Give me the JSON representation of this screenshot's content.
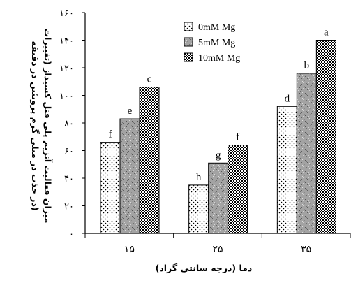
{
  "chart_data": {
    "type": "bar",
    "xlabel": "دما (درجه سانتی گراد)",
    "ylabel": [
      "میزان فعالیت آنزیم پلی فنل کسیداز (تغییرات",
      "در جذب در میلی گرم پروتئین در دقیقه)"
    ],
    "categories": [
      "۱۵",
      "۲۵",
      "۳۵"
    ],
    "ylim": [
      0,
      160
    ],
    "yticks": [
      0,
      20,
      40,
      60,
      80,
      100,
      120,
      140,
      160
    ],
    "ytick_labels": [
      "۰",
      "۲۰",
      "۴۰",
      "۶۰",
      "۸۰",
      "۱۰۰",
      "۱۲۰",
      "۱۴۰",
      "۱۶۰"
    ],
    "series": [
      {
        "name": "0mM Mg",
        "pattern": "dots",
        "values": [
          66,
          35,
          92
        ],
        "labels": [
          "f",
          "h",
          "d"
        ]
      },
      {
        "name": "5mM Mg",
        "pattern": "gray-speckle",
        "values": [
          83,
          51,
          116
        ],
        "labels": [
          "e",
          "g",
          "b"
        ]
      },
      {
        "name": "10mM Mg",
        "pattern": "checker",
        "values": [
          106,
          64,
          140
        ],
        "labels": [
          "c",
          "f",
          "a"
        ]
      }
    ],
    "grid": false,
    "legend_position": "top-center",
    "colors": {
      "axis": "#000000",
      "bar_outline": "#000000",
      "speckle": "#9a9a9a"
    }
  }
}
